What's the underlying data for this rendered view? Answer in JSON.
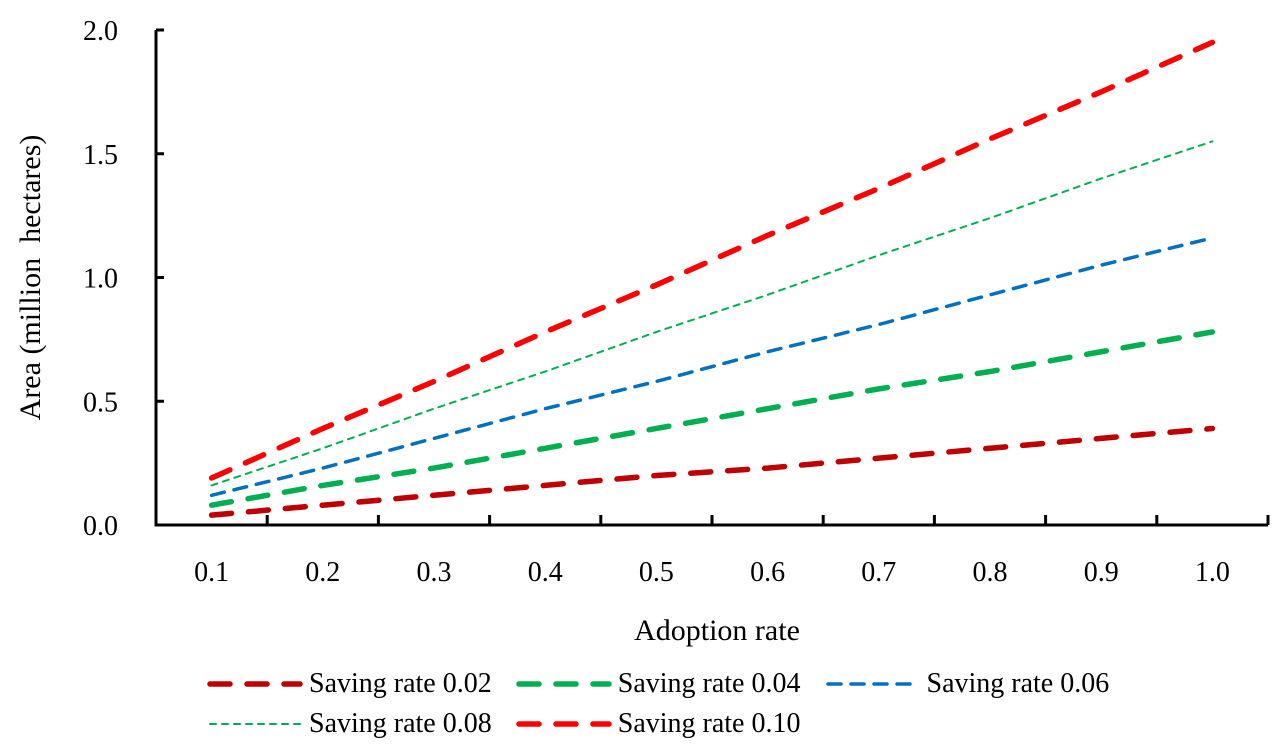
{
  "chart_data": {
    "type": "line",
    "title": "",
    "xlabel": "Adoption rate",
    "ylabel": "Area (million  hectares)",
    "x": [
      0.1,
      0.2,
      0.3,
      0.4,
      0.5,
      0.6,
      0.7,
      0.8,
      0.9,
      1.0
    ],
    "x_tick_labels": [
      "0.1",
      "0.2",
      "0.3",
      "0.4",
      "0.5",
      "0.6",
      "0.7",
      "0.8",
      "0.9",
      "1.0"
    ],
    "y_tick_labels": [
      "0.0",
      "0.5",
      "1.0",
      "1.5",
      "2.0"
    ],
    "y_ticks": [
      0.0,
      0.5,
      1.0,
      1.5,
      2.0
    ],
    "ylim": [
      0,
      2.0
    ],
    "grid": false,
    "legend_position": "bottom",
    "series": [
      {
        "name": "Saving rate 0.02",
        "color": "#C00000",
        "style": "dash-heavy",
        "values": [
          0.04,
          0.08,
          0.12,
          0.16,
          0.2,
          0.23,
          0.27,
          0.31,
          0.35,
          0.39
        ]
      },
      {
        "name": "Saving rate 0.04",
        "color": "#00B050",
        "style": "dash-heavy",
        "values": [
          0.08,
          0.16,
          0.23,
          0.31,
          0.39,
          0.47,
          0.55,
          0.62,
          0.7,
          0.78
        ]
      },
      {
        "name": "Saving rate 0.06",
        "color": "#0070C0",
        "style": "dash-medium",
        "values": [
          0.12,
          0.23,
          0.35,
          0.47,
          0.58,
          0.7,
          0.81,
          0.93,
          1.05,
          1.16
        ]
      },
      {
        "name": "Saving rate 0.08",
        "color": "#00B050",
        "style": "dash-light",
        "values": [
          0.16,
          0.31,
          0.47,
          0.62,
          0.78,
          0.93,
          1.09,
          1.24,
          1.4,
          1.55
        ]
      },
      {
        "name": "Saving rate 0.10",
        "color": "#FF0000",
        "style": "dash-heavy",
        "values": [
          0.19,
          0.39,
          0.58,
          0.78,
          0.97,
          1.17,
          1.36,
          1.56,
          1.75,
          1.95
        ]
      }
    ]
  }
}
